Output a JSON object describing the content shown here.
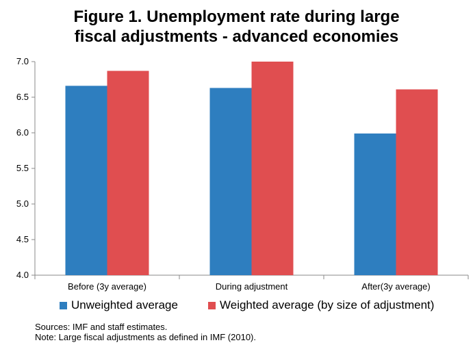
{
  "title": {
    "line1": "Figure 1. Unemployment rate during large",
    "line2": "fiscal adjustments - advanced economies"
  },
  "chart_data": {
    "type": "bar",
    "categories": [
      "Before (3y average)",
      "During adjustment",
      "After(3y average)"
    ],
    "series": [
      {
        "name": "Unweighted average",
        "values": [
          6.66,
          6.63,
          5.99
        ],
        "color": "#2e7ebf"
      },
      {
        "name": "Weighted average (by size of adjustment)",
        "values": [
          6.87,
          7.0,
          6.61
        ],
        "color": "#e04e50"
      }
    ],
    "ylim": [
      4.0,
      7.0
    ],
    "yticks": [
      "4.0",
      "4.5",
      "5.0",
      "5.5",
      "6.0",
      "6.5",
      "7.0"
    ],
    "xlabel": "",
    "ylabel": "",
    "grid": false,
    "legend": "bottom"
  },
  "notes": {
    "sources": "Sources: IMF and staff estimates.",
    "note": "Note: Large fiscal adjustments as defined in IMF (2010)."
  }
}
